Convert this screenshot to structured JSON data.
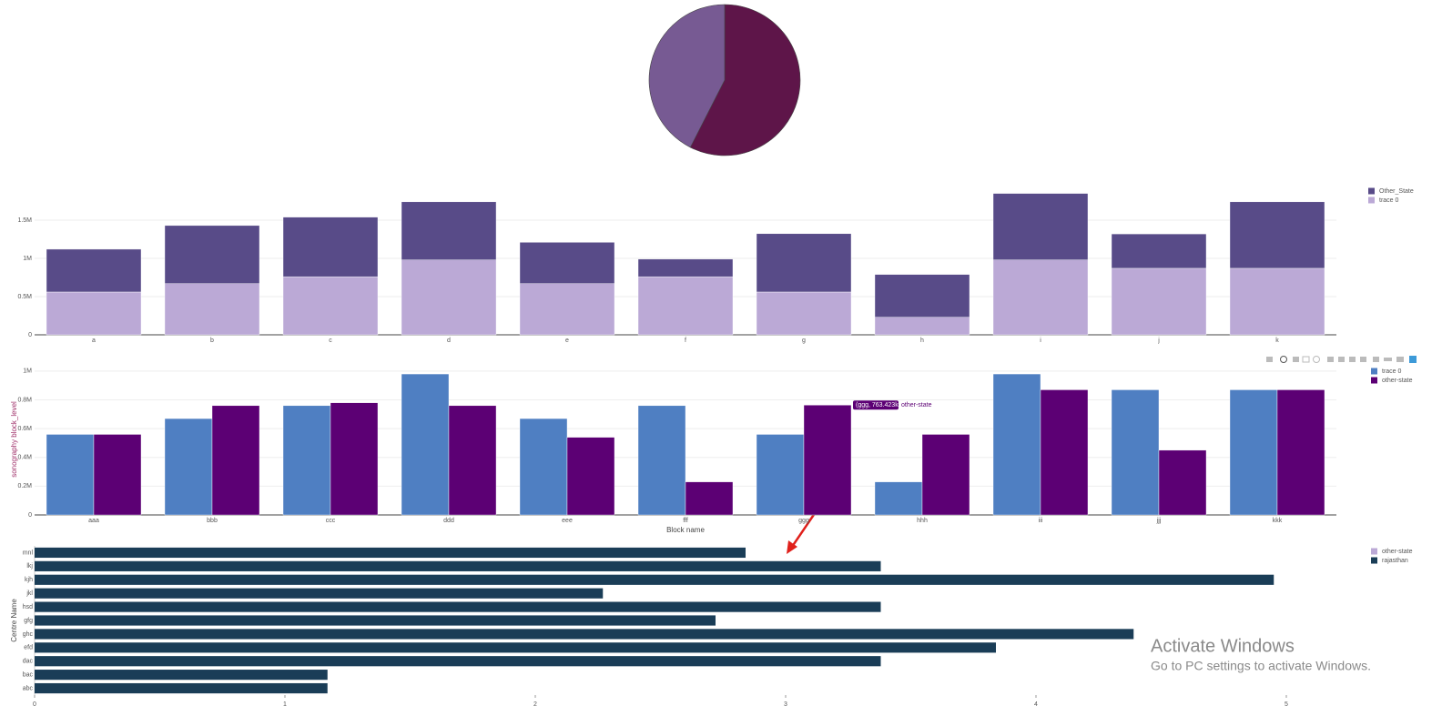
{
  "chart_data": [
    {
      "type": "pie",
      "values": [
        57.5,
        42.5
      ],
      "colors": [
        "#5e1549",
        "#775a93"
      ]
    },
    {
      "type": "bar",
      "barmode": "stack",
      "categories": [
        "a",
        "b",
        "c",
        "d",
        "e",
        "f",
        "g",
        "h",
        "i",
        "j",
        "k"
      ],
      "series": [
        {
          "name": "trace 0",
          "color": "#bba9d6",
          "values": [
            560000,
            670000,
            760000,
            980000,
            670000,
            760000,
            560000,
            230000,
            980000,
            870000,
            870000
          ]
        },
        {
          "name": "Other_State",
          "color": "#584b88",
          "values": [
            560000,
            760000,
            780000,
            760000,
            540000,
            230000,
            763423,
            560000,
            870000,
            450000,
            870000
          ]
        }
      ],
      "ylim": [
        0,
        2000000
      ],
      "yticks": [
        0,
        {
          "value": 500000,
          "label": "0.5M"
        },
        {
          "value": 1000000,
          "label": "1M"
        },
        {
          "value": 1500000,
          "label": "1.5M"
        }
      ],
      "grid": true
    },
    {
      "type": "bar",
      "barmode": "group",
      "categories": [
        "aaa",
        "bbb",
        "ccc",
        "ddd",
        "eee",
        "fff",
        "ggg",
        "hhh",
        "iii",
        "jjj",
        "kkk"
      ],
      "series": [
        {
          "name": "trace 0",
          "color": "#4f7fc2",
          "values": [
            560000,
            670000,
            760000,
            980000,
            670000,
            760000,
            560000,
            230000,
            980000,
            870000,
            870000
          ]
        },
        {
          "name": "other-state",
          "color": "#5c0074",
          "values": [
            560000,
            760000,
            780000,
            760000,
            540000,
            230000,
            763423,
            560000,
            870000,
            450000,
            870000
          ]
        }
      ],
      "ylim": [
        0,
        1050000
      ],
      "yticks": [
        0,
        {
          "value": 200000,
          "label": "0.2M"
        },
        {
          "value": 400000,
          "label": "0.4M"
        },
        {
          "value": 600000,
          "label": "0.6M"
        },
        {
          "value": 800000,
          "label": "0.8M"
        },
        {
          "value": 1000000,
          "label": "1M"
        }
      ],
      "xlabel": "Block name",
      "ylabel": "sonography block_level",
      "tooltip": {
        "text": "(ggg, 763.423k)",
        "category_index": 6,
        "series_index": 1
      },
      "grid": true
    },
    {
      "type": "bar",
      "barmode": "group",
      "orientation": "h",
      "categories": [
        "mnl",
        "lkj",
        "kjh",
        "jkl",
        "hsd",
        "gfg",
        "ghc",
        "efd",
        "dac",
        "bac",
        "abc"
      ],
      "series": [
        {
          "name": "other-state",
          "color": "#bba9d6",
          "values": [
            null,
            null,
            null,
            null,
            null,
            null,
            null,
            null,
            null,
            null,
            null
          ]
        },
        {
          "name": "rajasthan",
          "color": "#1a3d57",
          "values": [
            2.84,
            3.38,
            4.95,
            2.27,
            3.38,
            2.72,
            4.39,
            3.84,
            3.38,
            1.17,
            1.17
          ]
        }
      ],
      "xlim": [
        0,
        5.2
      ],
      "xticks": [
        0,
        1,
        2,
        3,
        4,
        5
      ],
      "ylabel": "Centre Name"
    }
  ],
  "watermark": {
    "title": "Activate Windows",
    "subtitle": "Go to PC settings to activate Windows."
  }
}
